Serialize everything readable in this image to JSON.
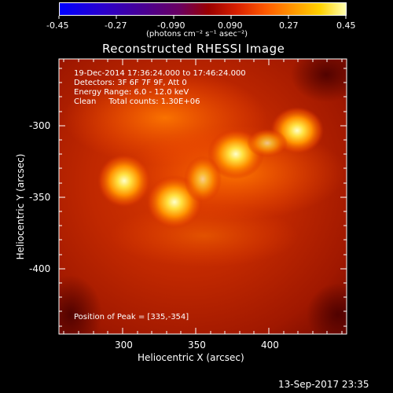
{
  "colorbar": {
    "tick_labels": [
      "-0.45",
      "-0.27",
      "-0.090",
      "0.090",
      "0.27",
      "0.45"
    ],
    "unit_label": "(photons cm⁻² s⁻¹ asec⁻²)",
    "range": [
      -0.45,
      0.45
    ]
  },
  "image": {
    "title": "Reconstructed RHESSI Image",
    "info_lines": [
      "19-Dec-2014 17:36:24.000 to 17:46:24.000",
      "Detectors: 3F 6F 7F 9F, Att 0",
      "Energy Range: 6.0 - 12.0 keV",
      "Clean     Total counts: 1.30E+06"
    ],
    "peak_text": "Position of Peak = [335,-354]",
    "x_axis_label": "Heliocentric X (arcsec)",
    "y_axis_label": "Heliocentric Y (arcsec)",
    "x_ticks": [
      "300",
      "350",
      "400"
    ],
    "y_ticks": [
      "-300",
      "-350",
      "-400"
    ],
    "x_range": [
      258,
      448
    ],
    "y_range": [
      -448,
      -256
    ]
  },
  "footer": {
    "timestamp": "13-Sep-2017 23:35"
  },
  "colors": {
    "background": "#000000",
    "foreground": "#ffffff"
  }
}
